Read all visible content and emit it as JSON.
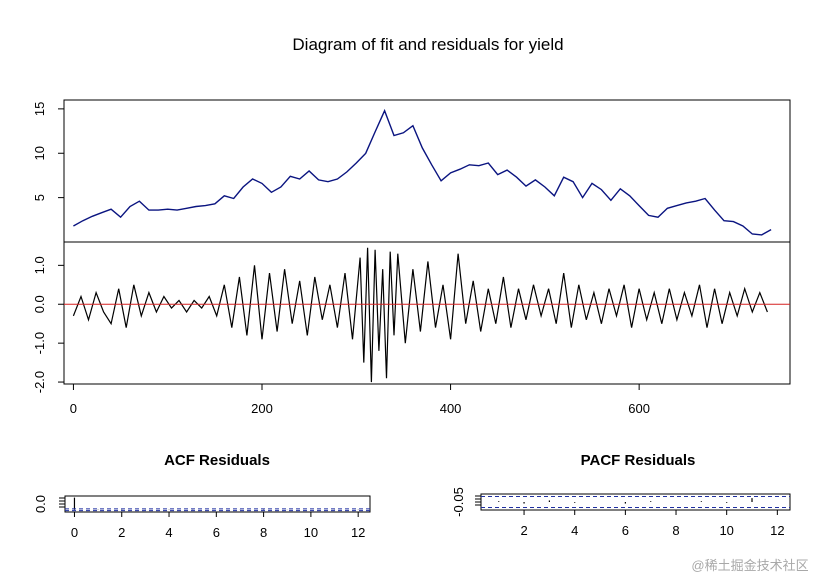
{
  "title": "Diagram of fit and residuals for yield",
  "watermark": "@稀土掘金技术社区",
  "chart_data": [
    {
      "type": "line",
      "name": "fit",
      "xlim": [
        -10,
        760
      ],
      "ylim": [
        0,
        16
      ],
      "yticks": [
        "5",
        "10",
        "15"
      ],
      "yticks_values": [
        5,
        10,
        15
      ],
      "color": "#0a1480",
      "x": [
        0,
        10,
        20,
        30,
        40,
        50,
        60,
        70,
        80,
        90,
        100,
        110,
        120,
        130,
        140,
        150,
        160,
        170,
        180,
        190,
        200,
        210,
        220,
        230,
        240,
        250,
        260,
        270,
        280,
        290,
        300,
        310,
        320,
        330,
        340,
        350,
        360,
        370,
        380,
        390,
        400,
        410,
        420,
        430,
        440,
        450,
        460,
        470,
        480,
        490,
        500,
        510,
        520,
        530,
        540,
        550,
        560,
        570,
        580,
        590,
        600,
        610,
        620,
        630,
        640,
        650,
        660,
        670,
        680,
        690,
        700,
        710,
        720,
        730,
        740
      ],
      "y": [
        1.8,
        2.4,
        2.9,
        3.3,
        3.7,
        2.8,
        4.0,
        4.6,
        3.6,
        3.6,
        3.7,
        3.6,
        3.8,
        4.0,
        4.1,
        4.3,
        5.2,
        4.9,
        6.2,
        7.1,
        6.6,
        5.6,
        6.2,
        7.4,
        7.1,
        8.0,
        7.0,
        6.8,
        7.1,
        7.9,
        8.9,
        10.0,
        12.4,
        14.8,
        12.0,
        12.3,
        13.1,
        10.6,
        8.7,
        6.9,
        7.8,
        8.2,
        8.7,
        8.6,
        8.9,
        7.6,
        8.1,
        7.3,
        6.3,
        7.0,
        6.2,
        5.2,
        7.3,
        6.8,
        5.0,
        6.6,
        5.9,
        4.7,
        6.0,
        5.2,
        4.1,
        3.0,
        2.8,
        3.8,
        4.1,
        4.4,
        4.6,
        4.9,
        3.6,
        2.4,
        2.3,
        1.8,
        0.9,
        0.8,
        1.4
      ]
    },
    {
      "type": "line",
      "name": "residuals",
      "xlim": [
        -10,
        760
      ],
      "ylim": [
        -2.05,
        1.6
      ],
      "yticks": [
        "-2.0",
        "-1.0",
        "0.0",
        "1.0"
      ],
      "yticks_values": [
        -2.0,
        -1.0,
        0.0,
        1.0
      ],
      "xticks": [
        "0",
        "200",
        "400",
        "600"
      ],
      "xticks_values": [
        0,
        200,
        400,
        600
      ],
      "zero_line_color": "#d62020",
      "color": "#000000",
      "x": [
        0,
        8,
        16,
        24,
        32,
        40,
        48,
        56,
        64,
        72,
        80,
        88,
        96,
        104,
        112,
        120,
        128,
        136,
        144,
        152,
        160,
        168,
        176,
        184,
        192,
        200,
        208,
        216,
        224,
        232,
        240,
        248,
        256,
        264,
        272,
        280,
        288,
        296,
        304,
        308,
        312,
        316,
        320,
        324,
        328,
        332,
        336,
        340,
        344,
        352,
        360,
        368,
        376,
        384,
        392,
        400,
        408,
        416,
        424,
        432,
        440,
        448,
        456,
        464,
        472,
        480,
        488,
        496,
        504,
        512,
        520,
        528,
        536,
        544,
        552,
        560,
        568,
        576,
        584,
        592,
        600,
        608,
        616,
        624,
        632,
        640,
        648,
        656,
        664,
        672,
        680,
        688,
        696,
        704,
        712,
        720,
        728,
        736
      ],
      "y": [
        -0.3,
        0.2,
        -0.4,
        0.3,
        -0.2,
        -0.5,
        0.4,
        -0.6,
        0.5,
        -0.3,
        0.3,
        -0.2,
        0.2,
        -0.1,
        0.1,
        -0.2,
        0.1,
        -0.1,
        0.2,
        -0.3,
        0.5,
        -0.6,
        0.7,
        -0.8,
        1.0,
        -0.9,
        0.8,
        -0.7,
        0.9,
        -0.5,
        0.6,
        -0.8,
        0.7,
        -0.4,
        0.5,
        -0.6,
        0.8,
        -0.9,
        1.2,
        -1.5,
        1.45,
        -2.0,
        1.4,
        -1.2,
        0.9,
        -1.9,
        1.35,
        -0.8,
        1.3,
        -1.0,
        0.9,
        -0.7,
        1.1,
        -0.6,
        0.5,
        -0.9,
        1.3,
        -0.5,
        0.6,
        -0.7,
        0.4,
        -0.5,
        0.7,
        -0.6,
        0.4,
        -0.4,
        0.5,
        -0.3,
        0.4,
        -0.5,
        0.8,
        -0.6,
        0.5,
        -0.4,
        0.3,
        -0.5,
        0.4,
        -0.3,
        0.5,
        -0.6,
        0.4,
        -0.4,
        0.3,
        -0.5,
        0.4,
        -0.4,
        0.3,
        -0.3,
        0.5,
        -0.6,
        0.4,
        -0.5,
        0.3,
        -0.3,
        0.4,
        -0.2,
        0.3,
        -0.2
      ]
    },
    {
      "type": "bar",
      "name": "acf",
      "title": "ACF Residuals",
      "xlim": [
        -0.4,
        12.5
      ],
      "xticks": [
        "0",
        "2",
        "4",
        "6",
        "8",
        "10",
        "12"
      ],
      "xticks_values": [
        0,
        2,
        4,
        6,
        8,
        10,
        12
      ],
      "yticks": [
        "0.0"
      ],
      "yticks_values": [
        0.0
      ],
      "values": [
        1.0,
        0.02,
        -0.03,
        0.01,
        0.02,
        -0.01,
        0.0,
        0.01,
        -0.02,
        0.01,
        0.0,
        -0.01,
        0.02
      ],
      "ylim": [
        -0.1,
        1.05
      ],
      "confidence": 0.07,
      "band_color": "#1f2fa0"
    },
    {
      "type": "bar",
      "name": "pacf",
      "title": "PACF Residuals",
      "xlim": [
        0.3,
        12.5
      ],
      "xticks": [
        "2",
        "4",
        "6",
        "8",
        "10",
        "12"
      ],
      "xticks_values": [
        2,
        4,
        6,
        8,
        10,
        12
      ],
      "yticks": [
        "-0.05"
      ],
      "yticks_values": [
        -0.05
      ],
      "values": [
        0.01,
        -0.02,
        0.02,
        -0.01,
        0.0,
        -0.02,
        0.01,
        0.0,
        0.01,
        -0.01,
        0.05,
        0.0
      ],
      "ylim": [
        -0.09,
        0.09
      ],
      "confidence": 0.07,
      "band_color": "#1f2fa0"
    }
  ]
}
